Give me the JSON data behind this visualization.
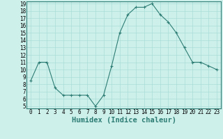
{
  "x": [
    0,
    1,
    2,
    3,
    4,
    5,
    6,
    7,
    8,
    9,
    10,
    11,
    12,
    13,
    14,
    15,
    16,
    17,
    18,
    19,
    20,
    21,
    22,
    23
  ],
  "y": [
    8.5,
    11.0,
    11.0,
    7.5,
    6.5,
    6.5,
    6.5,
    6.5,
    5.0,
    6.5,
    10.5,
    15.0,
    17.5,
    18.5,
    18.5,
    19.0,
    17.5,
    16.5,
    15.0,
    13.0,
    11.0,
    11.0,
    10.5,
    10.0
  ],
  "line_color": "#2d7d74",
  "marker": "+",
  "marker_size": 3,
  "marker_lw": 0.8,
  "bg_color": "#cef0eb",
  "grid_color": "#aadcd6",
  "xlabel": "Humidex (Indice chaleur)",
  "ylim_min": 5,
  "ylim_max": 19,
  "xlim_min": -0.5,
  "xlim_max": 23.5,
  "yticks": [
    5,
    6,
    7,
    8,
    9,
    10,
    11,
    12,
    13,
    14,
    15,
    16,
    17,
    18,
    19
  ],
  "xticks": [
    0,
    1,
    2,
    3,
    4,
    5,
    6,
    7,
    8,
    9,
    10,
    11,
    12,
    13,
    14,
    15,
    16,
    17,
    18,
    19,
    20,
    21,
    22,
    23
  ],
  "tick_fontsize": 5.5,
  "xlabel_fontsize": 7.5,
  "line_width": 0.8,
  "border_color": "#2d7d74"
}
